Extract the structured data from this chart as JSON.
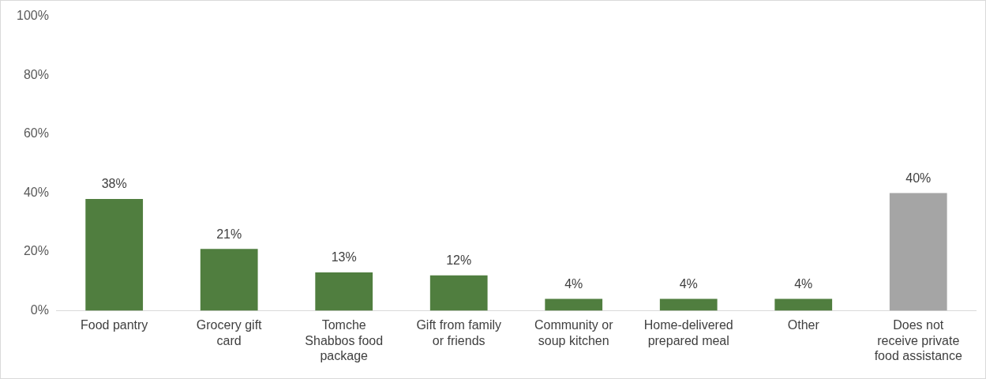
{
  "chart_data": {
    "type": "bar",
    "categories": [
      "Food pantry",
      "Grocery gift card",
      "Tomche Shabbos food package",
      "Gift from family or friends",
      "Community or soup kitchen",
      "Home-delivered prepared meal",
      "Other",
      "Does not receive private food assistance"
    ],
    "values": [
      38,
      21,
      13,
      12,
      4,
      4,
      4,
      40
    ],
    "colors": [
      "#507e3f",
      "#507e3f",
      "#507e3f",
      "#507e3f",
      "#507e3f",
      "#507e3f",
      "#507e3f",
      "#a5a5a5"
    ],
    "ylim": [
      0,
      100
    ],
    "yticks": [
      {
        "value": 0,
        "label": "0%"
      },
      {
        "value": 20,
        "label": "20%"
      },
      {
        "value": 40,
        "label": "40%"
      },
      {
        "value": 60,
        "label": "60%"
      },
      {
        "value": 80,
        "label": "80%"
      },
      {
        "value": 100,
        "label": "100%"
      }
    ],
    "value_labels": [
      "38%",
      "21%",
      "13%",
      "12%",
      "4%",
      "4%",
      "4%",
      "40%"
    ],
    "grid": false
  }
}
